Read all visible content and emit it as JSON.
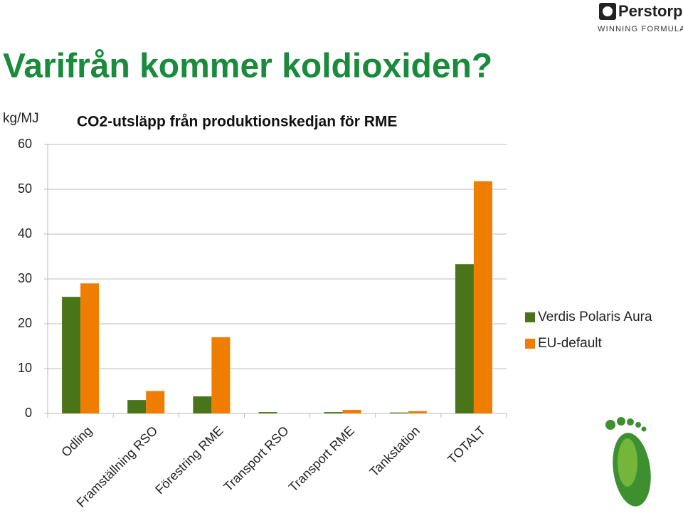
{
  "slide_title": "Varifrån kommer koldioxiden?",
  "logo": {
    "name": "Perstorp",
    "tagline": "WINNING FORMULAS"
  },
  "chart_data": {
    "type": "bar",
    "title": "CO2-utsläpp från produktionskedjan för RME",
    "y_label": "kg/MJ",
    "categories": [
      "Odling",
      "Framställning RSO",
      "Förestring RME",
      "Transport RSO",
      "Transport RME",
      "Tankstation",
      "TOTALT"
    ],
    "series": [
      {
        "name": "Verdis Polaris Aura",
        "color": "#4a7419",
        "values": [
          26,
          3,
          3.8,
          0.3,
          0.3,
          0.2,
          33.3
        ]
      },
      {
        "name": "EU-default",
        "color": "#ee7d00",
        "values": [
          29,
          5,
          17,
          0,
          0.8,
          0.5,
          51.8
        ]
      }
    ],
    "ylim": [
      0,
      60
    ],
    "yticks": [
      0,
      10,
      20,
      30,
      40,
      50,
      60
    ],
    "grid": true,
    "legend": "right"
  }
}
